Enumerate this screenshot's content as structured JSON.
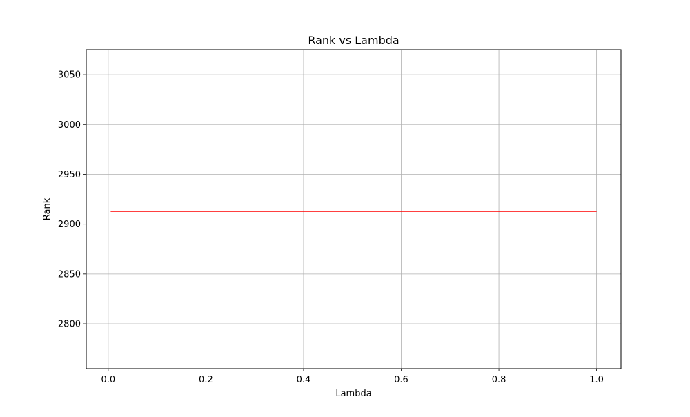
{
  "chart_data": {
    "type": "line",
    "title": "Rank vs Lambda",
    "xlabel": "Lambda",
    "ylabel": "Rank",
    "xlim": [
      -0.045,
      1.05
    ],
    "ylim": [
      2755,
      3075
    ],
    "xticks": [
      0.0,
      0.2,
      0.4,
      0.6,
      0.8,
      1.0
    ],
    "xtick_labels": [
      "0.0",
      "0.2",
      "0.4",
      "0.6",
      "0.8",
      "1.0"
    ],
    "yticks": [
      2800,
      2850,
      2900,
      2950,
      3000,
      3050
    ],
    "ytick_labels": [
      "2800",
      "2850",
      "2900",
      "2950",
      "3000",
      "3050"
    ],
    "grid": true,
    "series": [
      {
        "color": "#ff0000",
        "x": [
          0.005,
          1.0
        ],
        "y": [
          2913,
          2913
        ]
      }
    ]
  }
}
